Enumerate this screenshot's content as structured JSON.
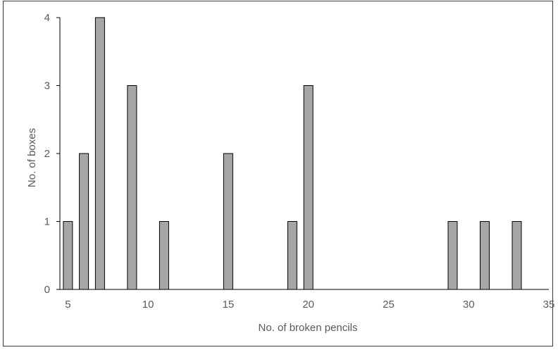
{
  "chart_data": {
    "type": "bar",
    "title": "",
    "xlabel": "No. of broken pencils",
    "ylabel": "No. of boxes",
    "x": [
      5,
      6,
      7,
      9,
      11,
      15,
      19,
      20,
      29,
      31,
      33
    ],
    "values": [
      1,
      2,
      4,
      3,
      1,
      2,
      1,
      3,
      1,
      1,
      1
    ],
    "xlim": [
      4.5,
      35
    ],
    "ylim": [
      0,
      4
    ],
    "xticks": [
      5,
      10,
      15,
      20,
      25,
      30,
      35
    ],
    "yticks": [
      0,
      1,
      2,
      3,
      4
    ],
    "grid": false,
    "legend": "none",
    "colors": {
      "bar_fill": "#a6a6a6",
      "bar_stroke": "#000000",
      "axis": "#000000",
      "text": "#595959",
      "frame": "#3a3a3a"
    }
  }
}
